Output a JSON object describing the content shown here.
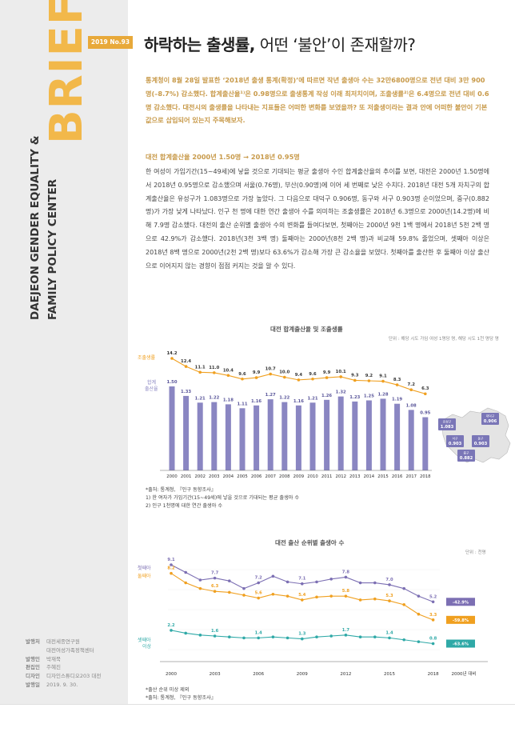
{
  "sidebar": {
    "brand_word": "BRIEF",
    "org_line1": "DAEJEON GENDER EQUALITY &",
    "org_line2": "FAMILY POLICY CENTER",
    "colophon": [
      {
        "key": "발행처",
        "value": "대전세종연구원"
      },
      {
        "key": "",
        "value": "대전여성가족정책센터"
      },
      {
        "key": "발행인",
        "value": "박재묵"
      },
      {
        "key": "편집인",
        "value": "주혜진"
      },
      {
        "key": "디자인",
        "value": "디자인스튜디오203 대전"
      },
      {
        "key": "발행일",
        "value": "2019. 9. 30."
      }
    ]
  },
  "header": {
    "issue": "2019 No.93",
    "title_bold": "하락하는 출생률,",
    "title_rest": " 어떤 ‘불안’이 존재할까?"
  },
  "lead": "통계청이 8월 28일 발표한 ‘2018년 출생 통계(확정)’에 따르면 작년 출생아 수는 32만6800명으로 전년 대비 3만 900명(–8.7%) 감소했다. 합계출산율¹⁾은 0.98명으로 출생통계 작성 이래 최저치이며, 조출생률²⁾은 6.4명으로 전년 대비 0.6명 감소했다. 대전시의 출생률을 나타내는 지표들은 어떠한 변화를 보였을까? 또 저출생이라는 결과 안에 어떠한 불안이 기본값으로 삽입되어 있는지 주목해보자.",
  "section": {
    "heading": "대전 합계출산율 2000년 1.50명 → 2018년 0.95명",
    "body": "한 여성이 가임기간(15~49세)에 낳을 것으로 기대되는 평균 출생아 수인 합계출산율의 추이를 보면, 대전은 2000년 1.50명에서 2018년 0.95명으로 감소했으며 서울(0.76명), 부산(0.90명)에 이어 세 번째로 낮은 수치다. 2018년 대전 5개 자치구의 합계출산율은 유성구가 1.083명으로 가장 높았다. 그 다음으로 대덕구 0.906명, 동구와 서구 0.903명 순이었으며, 중구(0.882명)가 가장 낮게 나타났다. 인구 천 명에 대한 연간 출생아 수를 의미하는 조출생률은 2018년 6.3명으로 2000년(14.2명)에 비해 7.9명 감소했다. 대전의 출산 순위별 출생아 수의 변화를 들여다보면, 첫째아는 2000년 9천 1백 명에서 2018년 5천 2백 명으로 42.9%가 감소했다. 2018년(3천 3백 명) 둘째아는 2000년(8천 2백 명)과 비교해 59.8% 줄었으며, 셋째아 이상은 2018년 8백 명으로 2000년(2천 2백 명)보다 63.6%가 감소해 가장 큰 감소율을 보였다. 첫째아를 출산한 후 둘째아 이상 출산으로 이어지지 않는 경향이 점점 커지는 것을 알 수 있다."
  },
  "chart_data": [
    {
      "type": "bar",
      "title": "대전 합계출산율 및 조출생률",
      "unit": "단위 : 해당 시도 가임 여성 1명당 명, 해당 시도 1천 명당 명",
      "categories": [
        "2000",
        "2001",
        "2002",
        "2003",
        "2004",
        "2005",
        "2006",
        "2007",
        "2008",
        "2009",
        "2010",
        "2011",
        "2012",
        "2013",
        "2014",
        "2015",
        "2016",
        "2017",
        "2018"
      ],
      "series": [
        {
          "name": "합계출산율",
          "values": [
            1.5,
            1.33,
            1.21,
            1.22,
            1.18,
            1.11,
            1.16,
            1.27,
            1.22,
            1.16,
            1.21,
            1.26,
            1.32,
            1.23,
            1.25,
            1.28,
            1.19,
            1.08,
            0.95
          ],
          "color": "#8a86c2"
        },
        {
          "name": "조출생률",
          "values": [
            14.2,
            12.4,
            11.1,
            11.0,
            10.4,
            9.6,
            9.9,
            10.7,
            10.0,
            9.4,
            9.6,
            9.9,
            10.1,
            9.3,
            9.2,
            9.1,
            8.3,
            7.2,
            6.3
          ],
          "color": "#f0a020"
        }
      ],
      "map_labels": [
        {
          "district": "유성구",
          "value": "1.083"
        },
        {
          "district": "대덕구",
          "value": "0.906"
        },
        {
          "district": "서구",
          "value": "0.903"
        },
        {
          "district": "동구",
          "value": "0.903"
        },
        {
          "district": "중구",
          "value": "0.882"
        }
      ],
      "notes": [
        "*출처: 통계청, 『인구 동향조사』",
        "1) 한 여자가 가임기간(15~49세)에 낳을 것으로 기대되는 평균 출생아 수",
        "2) 인구 1천명에 대한 연간 출생아 수"
      ]
    },
    {
      "type": "line",
      "title": "대전 출산 순위별 출생아 수",
      "unit": "단위 : 천명",
      "x": [
        "2000",
        "2001",
        "2002",
        "2003",
        "2004",
        "2005",
        "2006",
        "2007",
        "2008",
        "2009",
        "2010",
        "2011",
        "2012",
        "2013",
        "2014",
        "2015",
        "2016",
        "2017",
        "2018"
      ],
      "xticks": [
        "2000",
        "2003",
        "2006",
        "2009",
        "2012",
        "2015",
        "2018",
        "2000년 대비"
      ],
      "series": [
        {
          "name": "첫째아",
          "values": [
            9.1,
            8.3,
            7.5,
            7.7,
            7.4,
            6.6,
            7.2,
            7.9,
            7.3,
            7.1,
            7.3,
            7.6,
            7.8,
            7.2,
            7.2,
            7.0,
            6.6,
            5.8,
            5.2
          ],
          "labels": [
            "9.1",
            "",
            "",
            "7.7",
            "",
            "",
            "7.2",
            "",
            "",
            "7.1",
            "",
            "",
            "7.8",
            "",
            "",
            "7.0",
            "",
            "",
            "5.2"
          ],
          "change": "-42.9%",
          "color": "#7c6fb3"
        },
        {
          "name": "둘째아",
          "values": [
            8.2,
            7.2,
            6.6,
            6.3,
            6.2,
            5.9,
            5.6,
            6.0,
            5.8,
            5.4,
            5.7,
            5.8,
            5.8,
            5.4,
            5.5,
            5.3,
            4.9,
            3.9,
            3.3
          ],
          "labels": [
            "8.2",
            "",
            "",
            "6.3",
            "",
            "",
            "5.6",
            "",
            "",
            "5.4",
            "",
            "",
            "5.8",
            "",
            "",
            "5.3",
            "",
            "",
            "3.3"
          ],
          "change": "-59.8%",
          "color": "#f0a020"
        },
        {
          "name": "셋째아 이상",
          "values": [
            2.2,
            1.9,
            1.7,
            1.6,
            1.5,
            1.4,
            1.4,
            1.5,
            1.4,
            1.3,
            1.5,
            1.6,
            1.7,
            1.5,
            1.5,
            1.4,
            1.2,
            1.0,
            0.8
          ],
          "labels": [
            "2.2",
            "",
            "",
            "1.6",
            "",
            "",
            "1.4",
            "",
            "",
            "1.3",
            "",
            "",
            "1.7",
            "",
            "",
            "1.4",
            "",
            "",
            "0.8"
          ],
          "change": "-63.6%",
          "color": "#2fa9a7"
        }
      ],
      "notes": [
        "*출산 순위 미상 제외",
        "*출처: 통계청, 『인구 동향조사』"
      ]
    }
  ]
}
